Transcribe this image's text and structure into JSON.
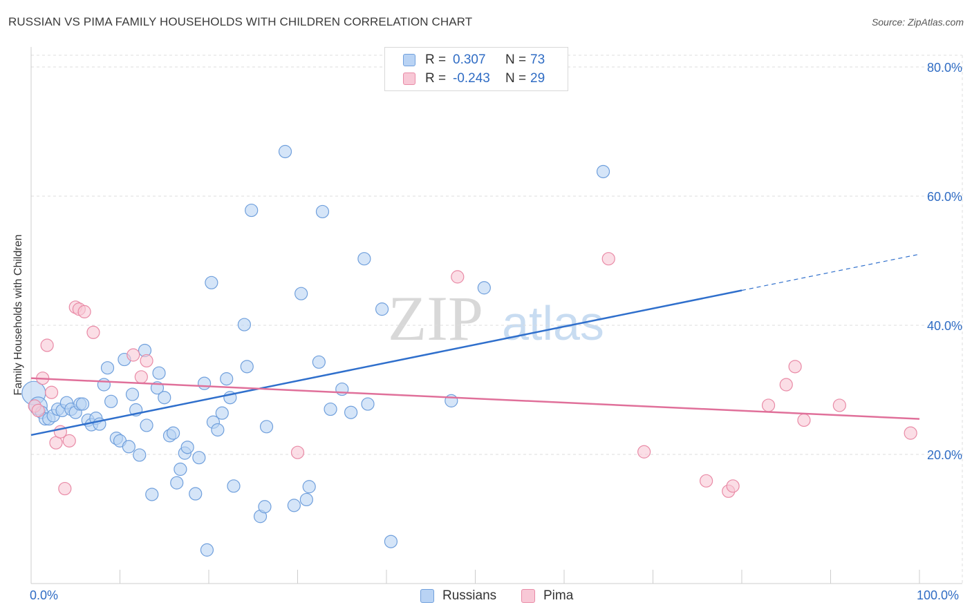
{
  "header": {
    "title": "RUSSIAN VS PIMA FAMILY HOUSEHOLDS WITH CHILDREN CORRELATION CHART",
    "source": "Source: ZipAtlas.com"
  },
  "watermark": {
    "zip": "ZIP",
    "atlas": "atlas"
  },
  "legend": {
    "russians": {
      "r_label": "R =",
      "r_value": "0.307",
      "n_label": "N =",
      "n_value": "73"
    },
    "pima": {
      "r_label": "R =",
      "r_value": "-0.243",
      "n_label": "N =",
      "n_value": "29"
    }
  },
  "bottom_legend": {
    "russians": "Russians",
    "pima": "Pima"
  },
  "colors": {
    "russians_fill": "#b9d3f4",
    "russians_stroke": "#6f9fdc",
    "russians_line": "#2f6fcc",
    "pima_fill": "#f8c8d6",
    "pima_stroke": "#e98aa6",
    "pima_line": "#e0709a",
    "axis_text": "#2f6cc4",
    "grid": "#dddddd"
  },
  "chart_data": {
    "type": "scatter",
    "title": "RUSSIAN VS PIMA FAMILY HOUSEHOLDS WITH CHILDREN CORRELATION CHART",
    "xlabel": "",
    "ylabel": "Family Households with Children",
    "xlim": [
      0,
      100
    ],
    "ylim": [
      0,
      80
    ],
    "x_tick_labels": [
      "0.0%",
      "100.0%"
    ],
    "y_ticks": [
      20,
      40,
      60,
      80
    ],
    "y_tick_labels": [
      "20.0%",
      "40.0%",
      "60.0%",
      "80.0%"
    ],
    "grid": true,
    "legend_position": "top-center",
    "series": [
      {
        "name": "Russians",
        "r": 0.307,
        "n": 73,
        "trend": {
          "x0": 0,
          "y0": 23.0,
          "x1": 80,
          "y1": 45.4,
          "dash_to_x": 100,
          "dash_to_y": 51.0
        },
        "points": [
          [
            0.3,
            29.5
          ],
          [
            0.8,
            27.5
          ],
          [
            1.2,
            26.5
          ],
          [
            1.6,
            25.5
          ],
          [
            2.0,
            25.5
          ],
          [
            2.5,
            26.0
          ],
          [
            3.0,
            27.0
          ],
          [
            3.5,
            26.8
          ],
          [
            4.0,
            28.0
          ],
          [
            4.5,
            27.0
          ],
          [
            5.0,
            26.5
          ],
          [
            5.5,
            27.8
          ],
          [
            5.8,
            27.8
          ],
          [
            6.4,
            25.3
          ],
          [
            6.8,
            24.6
          ],
          [
            7.3,
            25.6
          ],
          [
            7.7,
            24.7
          ],
          [
            8.2,
            30.8
          ],
          [
            8.6,
            33.4
          ],
          [
            9.0,
            28.2
          ],
          [
            9.6,
            22.5
          ],
          [
            10.0,
            22.1
          ],
          [
            10.5,
            34.7
          ],
          [
            11.0,
            21.2
          ],
          [
            11.4,
            29.3
          ],
          [
            11.8,
            26.9
          ],
          [
            12.2,
            19.9
          ],
          [
            12.8,
            36.1
          ],
          [
            13.0,
            24.5
          ],
          [
            13.6,
            13.8
          ],
          [
            14.2,
            30.3
          ],
          [
            14.4,
            32.6
          ],
          [
            15.0,
            28.8
          ],
          [
            15.6,
            22.9
          ],
          [
            16.0,
            23.3
          ],
          [
            16.4,
            15.6
          ],
          [
            16.8,
            17.7
          ],
          [
            17.3,
            20.2
          ],
          [
            17.6,
            21.1
          ],
          [
            18.5,
            13.9
          ],
          [
            18.9,
            19.5
          ],
          [
            19.5,
            31.0
          ],
          [
            19.8,
            5.2
          ],
          [
            20.3,
            46.6
          ],
          [
            20.5,
            25.0
          ],
          [
            21.0,
            23.8
          ],
          [
            21.5,
            26.4
          ],
          [
            22.0,
            31.7
          ],
          [
            22.4,
            28.8
          ],
          [
            22.8,
            15.1
          ],
          [
            24.0,
            40.1
          ],
          [
            24.3,
            33.6
          ],
          [
            24.8,
            57.8
          ],
          [
            25.8,
            10.4
          ],
          [
            26.3,
            11.9
          ],
          [
            26.5,
            24.3
          ],
          [
            28.6,
            66.9
          ],
          [
            29.6,
            12.1
          ],
          [
            30.4,
            44.9
          ],
          [
            31.0,
            13.0
          ],
          [
            31.3,
            15.0
          ],
          [
            32.4,
            34.3
          ],
          [
            32.8,
            57.6
          ],
          [
            33.7,
            27.0
          ],
          [
            35.0,
            30.1
          ],
          [
            36.0,
            26.5
          ],
          [
            37.5,
            50.3
          ],
          [
            37.9,
            27.8
          ],
          [
            39.5,
            42.5
          ],
          [
            40.5,
            6.5
          ],
          [
            47.3,
            28.3
          ],
          [
            51.0,
            45.8
          ],
          [
            64.4,
            63.8
          ]
        ]
      },
      {
        "name": "Pima",
        "r": -0.243,
        "n": 29,
        "trend": {
          "x0": 0,
          "y0": 31.8,
          "x1": 100,
          "y1": 25.5
        },
        "points": [
          [
            0.4,
            27.5
          ],
          [
            0.8,
            26.8
          ],
          [
            1.3,
            31.8
          ],
          [
            1.8,
            36.9
          ],
          [
            2.3,
            29.6
          ],
          [
            2.8,
            21.8
          ],
          [
            3.3,
            23.5
          ],
          [
            3.8,
            14.7
          ],
          [
            4.3,
            22.1
          ],
          [
            5.0,
            42.8
          ],
          [
            5.4,
            42.5
          ],
          [
            6.0,
            42.1
          ],
          [
            7.0,
            38.9
          ],
          [
            11.5,
            35.4
          ],
          [
            12.4,
            32.0
          ],
          [
            13.0,
            34.5
          ],
          [
            30.0,
            20.3
          ],
          [
            48.0,
            47.5
          ],
          [
            65.0,
            50.3
          ],
          [
            69.0,
            20.4
          ],
          [
            76.0,
            15.9
          ],
          [
            78.5,
            14.3
          ],
          [
            79.0,
            15.1
          ],
          [
            83.0,
            27.6
          ],
          [
            85.0,
            30.8
          ],
          [
            86.0,
            33.6
          ],
          [
            87.0,
            25.3
          ],
          [
            91.0,
            27.6
          ],
          [
            99.0,
            23.3
          ]
        ]
      }
    ]
  }
}
